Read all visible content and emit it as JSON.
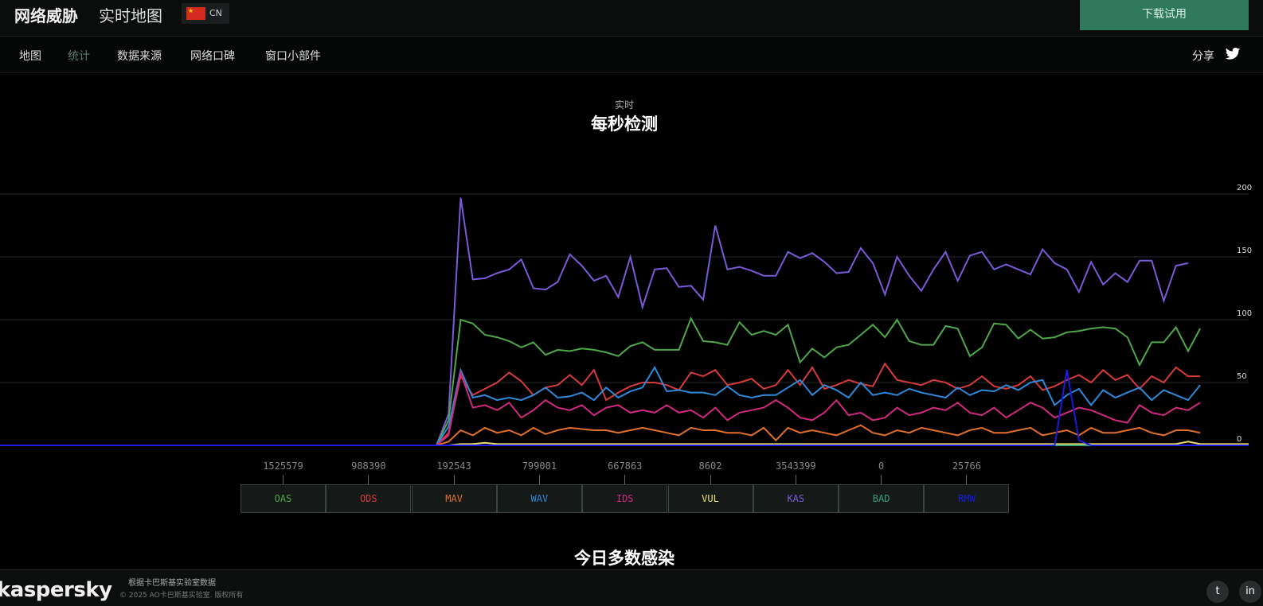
{
  "header": {
    "title": "网络威胁",
    "subtitle": "实时地图",
    "lang": "CN",
    "download_label": "下载试用"
  },
  "nav": {
    "items": [
      "地图",
      "统计",
      "数据来源",
      "网络口碑",
      "窗口小部件"
    ],
    "active": 1,
    "share_label": "分享"
  },
  "section": {
    "kicker": "实时",
    "title": "每秒检测"
  },
  "legend": [
    {
      "code": "OAS",
      "count": "1525579",
      "color": "#4fa84a"
    },
    {
      "code": "ODS",
      "count": "988390",
      "color": "#d83a3a"
    },
    {
      "code": "MAV",
      "count": "192543",
      "color": "#e0702a"
    },
    {
      "code": "WAV",
      "count": "799001",
      "color": "#2f88d8"
    },
    {
      "code": "IDS",
      "count": "667863",
      "color": "#d02a80"
    },
    {
      "code": "VUL",
      "count": "8602",
      "color": "#e8e070"
    },
    {
      "code": "KAS",
      "count": "3543399",
      "color": "#7a5ad8"
    },
    {
      "code": "BAD",
      "count": "0",
      "color": "#3aa07a"
    },
    {
      "code": "RMW",
      "count": "25766",
      "color": "#1a1ae0"
    }
  ],
  "chart_data": {
    "type": "line",
    "ylim": [
      0,
      200
    ],
    "yticks": [
      "0",
      "50",
      "100",
      "150",
      "200"
    ],
    "grid": true,
    "series": [
      {
        "name": "KAS",
        "values": [
          0,
          0,
          0,
          0,
          0,
          0,
          0,
          0,
          0,
          0,
          0,
          0,
          0,
          0,
          0,
          0,
          0,
          0,
          0,
          0,
          0,
          0,
          0,
          0,
          0,
          0,
          0,
          0,
          0,
          0,
          0,
          0,
          0,
          0,
          0,
          0,
          0,
          25,
          197,
          132,
          133,
          137,
          140,
          148,
          125,
          124,
          130,
          152,
          143,
          131,
          135,
          118,
          150,
          110,
          140,
          141,
          126,
          127,
          116,
          175,
          140,
          142,
          139,
          135,
          135,
          154,
          149,
          153,
          146,
          137,
          138,
          157,
          145,
          120,
          150,
          135,
          123,
          140,
          154,
          131,
          151,
          154,
          140,
          144,
          140,
          136,
          156,
          145,
          140,
          122,
          146,
          128,
          137,
          130,
          147,
          147,
          115,
          143,
          145
        ]
      },
      {
        "name": "OAS",
        "values": [
          0,
          0,
          0,
          0,
          0,
          0,
          0,
          0,
          0,
          0,
          0,
          0,
          0,
          0,
          0,
          0,
          0,
          0,
          0,
          0,
          0,
          0,
          0,
          0,
          0,
          0,
          0,
          0,
          0,
          0,
          0,
          0,
          0,
          0,
          0,
          0,
          0,
          20,
          100,
          97,
          88,
          86,
          83,
          78,
          82,
          72,
          76,
          75,
          77,
          76,
          74,
          71,
          79,
          82,
          76,
          76,
          76,
          101,
          83,
          82,
          80,
          98,
          88,
          91,
          88,
          96,
          66,
          77,
          70,
          78,
          80,
          88,
          96,
          86,
          100,
          83,
          80,
          80,
          95,
          93,
          71,
          78,
          97,
          96,
          85,
          92,
          85,
          86,
          90,
          91,
          93,
          94,
          93,
          86,
          64,
          82,
          82,
          94,
          75,
          93
        ]
      },
      {
        "name": "ODS",
        "values": [
          0,
          0,
          0,
          0,
          0,
          0,
          0,
          0,
          0,
          0,
          0,
          0,
          0,
          0,
          0,
          0,
          0,
          0,
          0,
          0,
          0,
          0,
          0,
          0,
          0,
          0,
          0,
          0,
          0,
          0,
          0,
          0,
          0,
          0,
          0,
          0,
          0,
          10,
          55,
          40,
          45,
          50,
          58,
          51,
          40,
          46,
          48,
          56,
          48,
          60,
          36,
          42,
          47,
          50,
          50,
          48,
          44,
          58,
          55,
          60,
          48,
          50,
          53,
          45,
          48,
          60,
          48,
          62,
          45,
          48,
          52,
          49,
          47,
          65,
          52,
          50,
          48,
          52,
          50,
          45,
          48,
          55,
          47,
          45,
          48,
          55,
          44,
          47,
          52,
          56,
          50,
          60,
          52,
          56,
          45,
          55,
          50,
          62,
          55,
          55
        ]
      },
      {
        "name": "WAV",
        "values": [
          0,
          0,
          0,
          0,
          0,
          0,
          0,
          0,
          0,
          0,
          0,
          0,
          0,
          0,
          0,
          0,
          0,
          0,
          0,
          0,
          0,
          0,
          0,
          0,
          0,
          0,
          0,
          0,
          0,
          0,
          0,
          0,
          0,
          0,
          0,
          0,
          0,
          15,
          60,
          38,
          40,
          36,
          38,
          36,
          40,
          46,
          38,
          39,
          42,
          36,
          46,
          38,
          43,
          46,
          62,
          43,
          44,
          42,
          42,
          40,
          47,
          40,
          38,
          40,
          40,
          46,
          52,
          40,
          48,
          44,
          38,
          50,
          40,
          42,
          40,
          45,
          42,
          40,
          38,
          46,
          40,
          44,
          43,
          48,
          44,
          50,
          52,
          32,
          40,
          45,
          32,
          44,
          38,
          42,
          46,
          36,
          44,
          40,
          36,
          48
        ]
      },
      {
        "name": "IDS",
        "values": [
          0,
          0,
          0,
          0,
          0,
          0,
          0,
          0,
          0,
          0,
          0,
          0,
          0,
          0,
          0,
          0,
          0,
          0,
          0,
          0,
          0,
          0,
          0,
          0,
          0,
          0,
          0,
          0,
          0,
          0,
          0,
          0,
          0,
          0,
          0,
          0,
          0,
          8,
          58,
          30,
          32,
          28,
          34,
          22,
          28,
          36,
          30,
          28,
          32,
          24,
          30,
          32,
          26,
          28,
          26,
          32,
          26,
          28,
          22,
          30,
          20,
          26,
          28,
          30,
          36,
          30,
          22,
          20,
          26,
          36,
          24,
          26,
          20,
          22,
          30,
          24,
          26,
          30,
          28,
          34,
          26,
          24,
          30,
          22,
          28,
          34,
          30,
          22,
          26,
          30,
          28,
          24,
          20,
          18,
          32,
          26,
          24,
          30,
          28,
          34
        ]
      },
      {
        "name": "MAV",
        "values": [
          0,
          0,
          0,
          0,
          0,
          0,
          0,
          0,
          0,
          0,
          0,
          0,
          0,
          0,
          0,
          0,
          0,
          0,
          0,
          0,
          0,
          0,
          0,
          0,
          0,
          0,
          0,
          0,
          0,
          0,
          0,
          0,
          0,
          0,
          0,
          0,
          0,
          3,
          12,
          8,
          14,
          10,
          12,
          8,
          14,
          9,
          12,
          14,
          13,
          12,
          12,
          10,
          12,
          14,
          12,
          10,
          8,
          14,
          12,
          12,
          10,
          10,
          8,
          14,
          4,
          14,
          10,
          12,
          10,
          8,
          12,
          16,
          10,
          8,
          12,
          10,
          14,
          12,
          10,
          8,
          12,
          14,
          10,
          10,
          12,
          14,
          8,
          10,
          12,
          8,
          14,
          10,
          10,
          12,
          14,
          10,
          8,
          12,
          12,
          10
        ]
      },
      {
        "name": "VUL",
        "values": [
          0,
          0,
          0,
          0,
          0,
          0,
          0,
          0,
          0,
          0,
          0,
          0,
          0,
          0,
          0,
          0,
          0,
          0,
          0,
          0,
          0,
          0,
          0,
          0,
          0,
          0,
          0,
          0,
          0,
          0,
          0,
          0,
          0,
          0,
          0,
          0,
          0,
          0,
          1,
          1,
          2,
          1,
          1,
          1,
          1,
          1,
          1,
          1,
          1,
          1,
          1,
          1,
          1,
          1,
          1,
          1,
          1,
          1,
          1,
          1,
          1,
          1,
          1,
          1,
          1,
          1,
          1,
          1,
          1,
          1,
          1,
          1,
          1,
          1,
          1,
          1,
          1,
          1,
          1,
          1,
          1,
          1,
          1,
          1,
          1,
          1,
          1,
          1,
          1,
          1,
          1,
          1,
          1,
          1,
          1,
          1,
          1,
          1,
          3,
          1,
          1,
          1,
          1,
          1
        ]
      },
      {
        "name": "BAD",
        "values": [
          0,
          0,
          0,
          0,
          0,
          0,
          0,
          0,
          0,
          0,
          0,
          0,
          0,
          0,
          0,
          0,
          0,
          0,
          0,
          0,
          0,
          0,
          0,
          0,
          0,
          0,
          0,
          0,
          0,
          0,
          0,
          0,
          0,
          0,
          0,
          0,
          0,
          0,
          0,
          0,
          0,
          0,
          0,
          0,
          0,
          0,
          0,
          0,
          0,
          0,
          0,
          0,
          0,
          0,
          0,
          0,
          0,
          0,
          0,
          0,
          0,
          0,
          0,
          0,
          0,
          0,
          0,
          0,
          0,
          0,
          0,
          0,
          0,
          0,
          0,
          0,
          0,
          0,
          0,
          0,
          0,
          0,
          0,
          0,
          0,
          0,
          0,
          0,
          0,
          0,
          0,
          0,
          0,
          0,
          0,
          0,
          0,
          0,
          0,
          0,
          0,
          0,
          0,
          0
        ]
      },
      {
        "name": "RMW",
        "values": [
          0,
          0,
          0,
          0,
          0,
          0,
          0,
          0,
          0,
          0,
          0,
          0,
          0,
          0,
          0,
          0,
          0,
          0,
          0,
          0,
          0,
          0,
          0,
          0,
          0,
          0,
          0,
          0,
          0,
          0,
          0,
          0,
          0,
          0,
          0,
          0,
          0,
          0,
          0,
          0,
          0,
          0,
          0,
          0,
          0,
          0,
          0,
          0,
          0,
          0,
          0,
          0,
          0,
          0,
          0,
          0,
          0,
          0,
          0,
          0,
          0,
          0,
          0,
          0,
          0,
          0,
          0,
          0,
          0,
          0,
          0,
          0,
          0,
          0,
          0,
          0,
          0,
          0,
          0,
          0,
          0,
          0,
          0,
          0,
          0,
          0,
          0,
          0,
          60,
          4,
          0,
          0,
          0,
          0,
          0,
          0,
          0,
          0,
          0,
          0,
          0,
          0,
          0,
          0
        ]
      }
    ]
  },
  "section2": {
    "title": "今日多数感染"
  },
  "footer": {
    "logo": "kaspersky",
    "source": "根据卡巴斯基实验室数据",
    "copyright": "© 2025 AO卡巴斯基实验室. 版权所有"
  }
}
